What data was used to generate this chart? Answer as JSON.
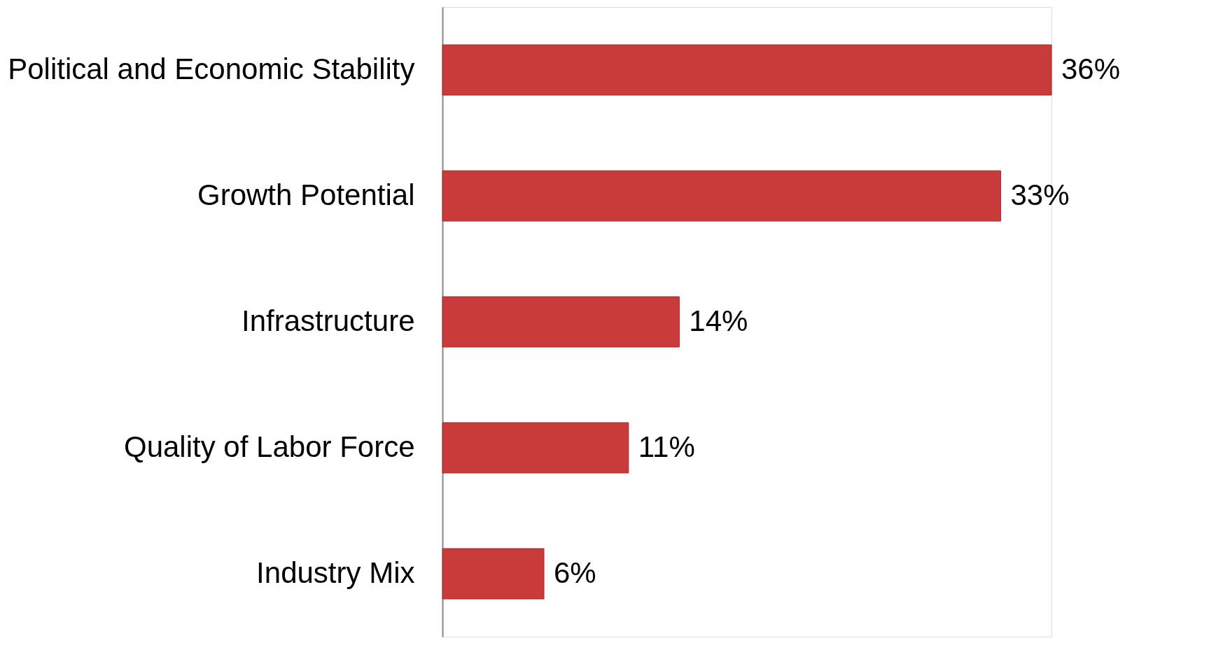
{
  "chart_data": {
    "type": "bar",
    "orientation": "horizontal",
    "categories": [
      "Political and Economic Stability",
      "Growth Potential",
      "Infrastructure",
      "Quality of Labor Force",
      "Industry Mix"
    ],
    "values": [
      36,
      33,
      14,
      11,
      6
    ],
    "value_labels": [
      "36%",
      "33%",
      "14%",
      "11%",
      "6%"
    ],
    "color": "#c83b3a",
    "grid": false
  }
}
